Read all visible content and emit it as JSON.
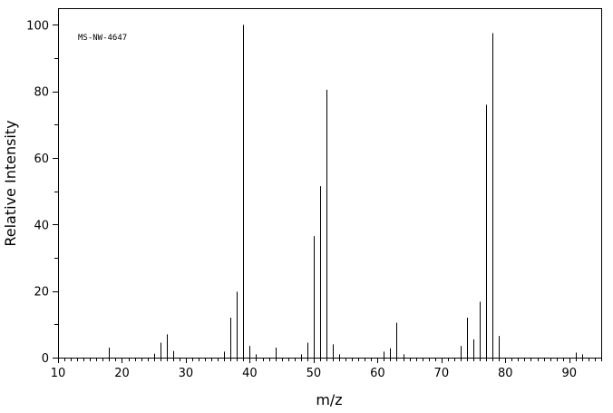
{
  "chart_data": {
    "type": "bar",
    "annotation": "MS-NW-4647",
    "xlabel": "m/z",
    "ylabel": "Relative Intensity",
    "xlim": [
      10,
      95
    ],
    "ylim": [
      0,
      105
    ],
    "x_ticks": [
      10,
      20,
      30,
      40,
      50,
      60,
      70,
      80,
      90
    ],
    "y_ticks": [
      0,
      20,
      40,
      60,
      80,
      100
    ],
    "x_minor_step": 1,
    "y_minor_step": 10,
    "grid": false,
    "peaks": [
      {
        "mz": 18,
        "intensity": 3.0
      },
      {
        "mz": 25,
        "intensity": 1.2
      },
      {
        "mz": 26,
        "intensity": 4.5
      },
      {
        "mz": 27,
        "intensity": 7.0
      },
      {
        "mz": 28,
        "intensity": 2.0
      },
      {
        "mz": 36,
        "intensity": 1.8
      },
      {
        "mz": 37,
        "intensity": 12.0
      },
      {
        "mz": 38,
        "intensity": 19.8
      },
      {
        "mz": 39,
        "intensity": 100.0
      },
      {
        "mz": 40,
        "intensity": 3.5
      },
      {
        "mz": 41,
        "intensity": 1.0
      },
      {
        "mz": 44,
        "intensity": 3.0
      },
      {
        "mz": 48,
        "intensity": 1.0
      },
      {
        "mz": 49,
        "intensity": 4.5
      },
      {
        "mz": 50,
        "intensity": 36.5
      },
      {
        "mz": 51,
        "intensity": 51.5
      },
      {
        "mz": 52,
        "intensity": 80.5
      },
      {
        "mz": 53,
        "intensity": 4.0
      },
      {
        "mz": 54,
        "intensity": 1.0
      },
      {
        "mz": 61,
        "intensity": 1.8
      },
      {
        "mz": 62,
        "intensity": 2.8
      },
      {
        "mz": 63,
        "intensity": 10.5
      },
      {
        "mz": 64,
        "intensity": 1.0
      },
      {
        "mz": 73,
        "intensity": 3.5
      },
      {
        "mz": 74,
        "intensity": 12.0
      },
      {
        "mz": 75,
        "intensity": 5.5
      },
      {
        "mz": 76,
        "intensity": 16.8
      },
      {
        "mz": 77,
        "intensity": 76.0
      },
      {
        "mz": 78,
        "intensity": 97.5
      },
      {
        "mz": 79,
        "intensity": 6.5
      },
      {
        "mz": 91,
        "intensity": 1.5
      },
      {
        "mz": 92,
        "intensity": 1.0
      }
    ]
  }
}
